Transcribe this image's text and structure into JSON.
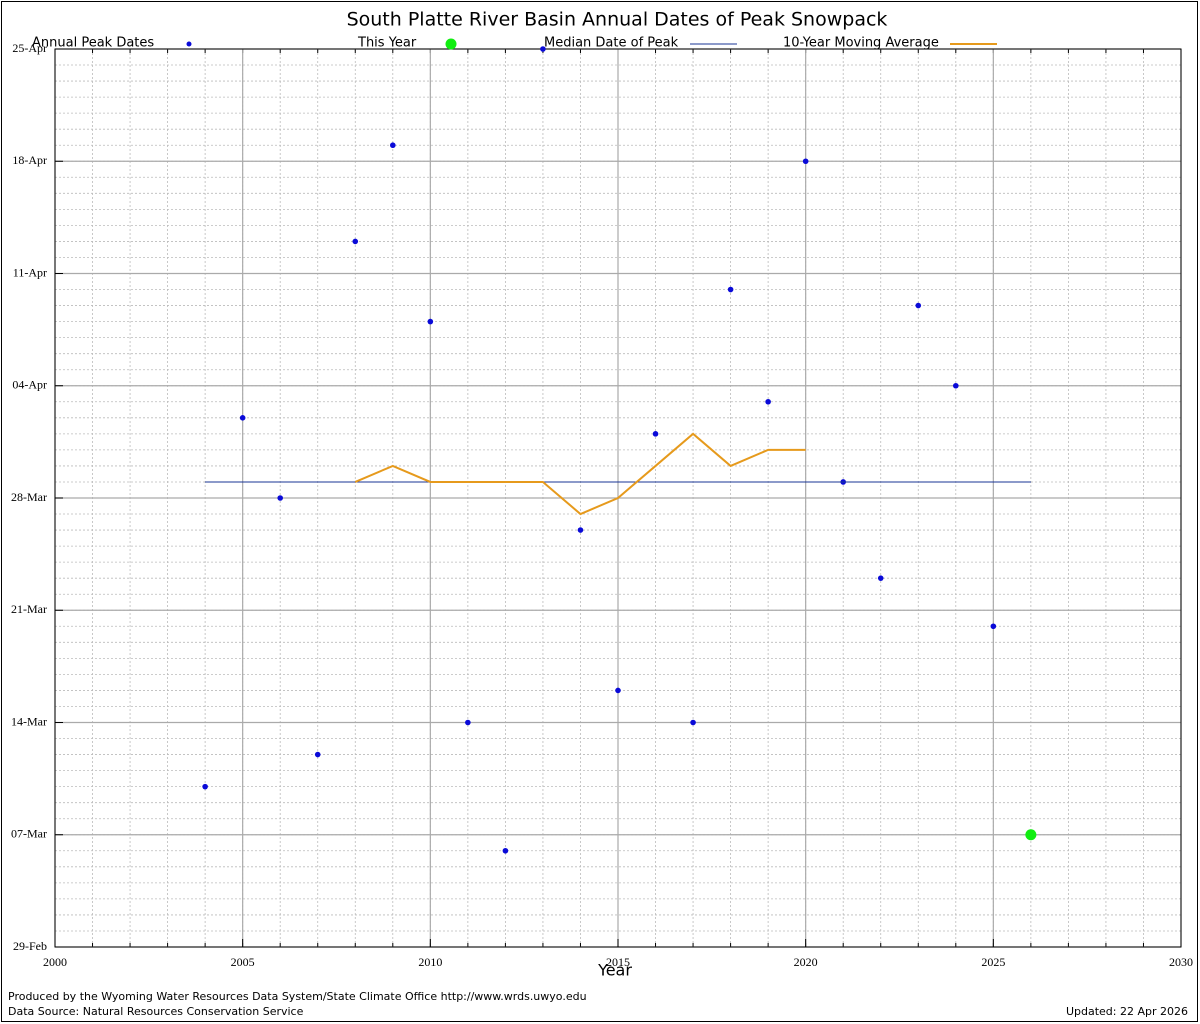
{
  "chart_data": {
    "type": "scatter",
    "title": "South Platte River Basin Annual Dates of Peak Snowpack",
    "x_label": "Year",
    "xlim": [
      2000,
      2030
    ],
    "xticks": [
      2000,
      2005,
      2010,
      2015,
      2020,
      2025,
      2030
    ],
    "ylim": [
      60,
      116
    ],
    "yticks": [
      {
        "value": 60,
        "label": "29-Feb"
      },
      {
        "value": 67,
        "label": "07-Mar"
      },
      {
        "value": 74,
        "label": "14-Mar"
      },
      {
        "value": 81,
        "label": "21-Mar"
      },
      {
        "value": 88,
        "label": "28-Mar"
      },
      {
        "value": 95,
        "label": "04-Apr"
      },
      {
        "value": 102,
        "label": "11-Apr"
      },
      {
        "value": 109,
        "label": "18-Apr"
      },
      {
        "value": 116,
        "label": "25-Apr"
      }
    ],
    "grid": true,
    "series": [
      {
        "name": "Annual Peak Dates",
        "color": "#0a0ad8",
        "mark": "point",
        "x": [
          2004,
          2005,
          2006,
          2007,
          2008,
          2009,
          2010,
          2011,
          2012,
          2013,
          2014,
          2015,
          2016,
          2017,
          2018,
          2019,
          2020,
          2021,
          2022,
          2023,
          2024,
          2025
        ],
        "values": [
          70,
          93,
          88,
          72,
          104,
          110,
          99,
          74,
          66,
          116,
          86,
          76,
          92,
          74,
          101,
          94,
          109,
          89,
          83,
          100,
          95,
          80
        ]
      },
      {
        "name": "This Year",
        "color": "#11ee11",
        "mark": "point",
        "x": [
          2026
        ],
        "values": [
          67
        ]
      },
      {
        "name": "Median Date of Peak",
        "color": "#1a3596",
        "mark": "line",
        "x": [
          2004,
          2026
        ],
        "values": [
          89,
          89
        ]
      },
      {
        "name": "10-Year Moving Average",
        "color": "#e69a1c",
        "mark": "line",
        "x": [
          2008,
          2009,
          2010,
          2011,
          2012,
          2013,
          2014,
          2015,
          2016,
          2017,
          2018,
          2019,
          2020
        ],
        "values": [
          89,
          90,
          89,
          89,
          89,
          89,
          87,
          88,
          90,
          92,
          90,
          91,
          91
        ]
      }
    ]
  },
  "footer": {
    "credit": "Produced by the Wyoming Water Resources Data System/State Climate Office http://www.wrds.uwyo.edu",
    "source": "Data Source: Natural Resources Conservation Service",
    "updated": "Updated: 22 Apr 2026"
  }
}
